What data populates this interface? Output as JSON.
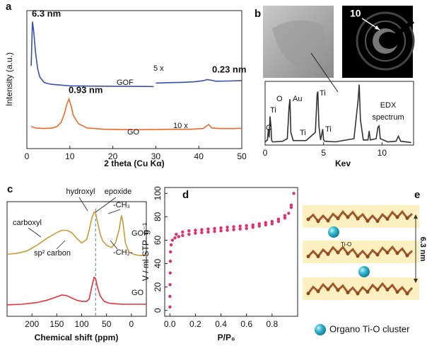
{
  "chart_data": [
    {
      "type": "line",
      "label": "a",
      "xlabel": "2 theta (Cu Kα)",
      "ylabel": "Intensity (a.u.)",
      "xlim": [
        0,
        50
      ],
      "ylim": [
        0,
        100
      ],
      "xticks": [
        0,
        10,
        20,
        30,
        40,
        50
      ],
      "series": [
        {
          "color": "#3a4fb0",
          "x": [
            1,
            1.3,
            1.6,
            2,
            2.5,
            3,
            4,
            5,
            6,
            8,
            10,
            15,
            20,
            25,
            29.5
          ],
          "values": [
            60,
            92,
            85,
            70,
            58,
            52,
            48,
            47,
            46.5,
            46,
            45.5,
            45.3,
            45.2,
            45.1,
            45
          ]
        },
        {
          "color": "#3a4fb0",
          "x": [
            30,
            33,
            36,
            39,
            41,
            42,
            43,
            44,
            47,
            50
          ],
          "values": [
            47.5,
            47.8,
            48,
            48.4,
            49.2,
            50,
            49.5,
            48.8,
            49,
            49.3
          ]
        },
        {
          "color": "#f06a2a",
          "x": [
            1,
            2,
            4,
            6,
            7,
            8,
            8.8,
            9.3,
            9.8,
            10.3,
            10.8,
            12,
            14,
            18,
            22,
            26,
            30,
            34,
            38,
            41,
            42.3,
            43,
            45,
            48,
            50
          ],
          "values": [
            16,
            15,
            14.5,
            15,
            16,
            19,
            26,
            32,
            36,
            31,
            24,
            18,
            15,
            14,
            13.8,
            13.7,
            13.8,
            14,
            14,
            14.5,
            17.5,
            15,
            14.5,
            14.5,
            14.7
          ]
        }
      ],
      "annotations": [
        "6.3 nm",
        "0.23 nm",
        "0.93 nm",
        "5 x",
        "10 x",
        "GOF",
        "GO"
      ]
    },
    {
      "type": "line",
      "label": "b",
      "xlabel": "Kev",
      "xlim": [
        0,
        12.7
      ],
      "ylim": [
        0,
        100
      ],
      "xticks": [
        0,
        5,
        10
      ],
      "image_label": "10",
      "series": [
        {
          "color": "#333333",
          "x": [
            0,
            0.2,
            0.28,
            0.35,
            0.42,
            0.5,
            0.55,
            0.62,
            0.8,
            1.5,
            1.9,
            2.05,
            2.12,
            2.2,
            2.4,
            3.5,
            4.3,
            4.45,
            4.51,
            4.6,
            4.75,
            4.93,
            5.0,
            5.1,
            6,
            7.6,
            7.95,
            8.05,
            8.15,
            8.4,
            8.8,
            8.9,
            9.0,
            9.5,
            9.65,
            9.75,
            9.85,
            10.5,
            11.2,
            11.4,
            11.6,
            12.5
          ],
          "values": [
            5,
            8,
            25,
            12,
            45,
            30,
            8,
            5,
            5,
            6,
            10,
            60,
            72,
            20,
            7,
            7,
            20,
            80,
            84,
            30,
            8,
            25,
            8,
            6,
            5,
            10,
            70,
            95,
            40,
            8,
            8,
            22,
            8,
            10,
            28,
            30,
            10,
            5,
            6,
            14,
            6,
            4
          ]
        }
      ],
      "annotations": [
        "C",
        "O",
        "Ti",
        "Au",
        "Ti",
        "Ti",
        "Ti",
        "EDX",
        "spectrum"
      ]
    },
    {
      "type": "line",
      "label": "c",
      "xlabel": "Chemical shift (ppm)",
      "xlim": [
        250,
        -30
      ],
      "ylim": [
        0,
        100
      ],
      "xticks": [
        200,
        150,
        100,
        50,
        0
      ],
      "reference_line": 72,
      "series": [
        {
          "color": "#c89a3a",
          "x": [
            250,
            230,
            210,
            190,
            170,
            150,
            140,
            130,
            120,
            110,
            100,
            90,
            85,
            80,
            75,
            72,
            68,
            63,
            58,
            50,
            40,
            32,
            25,
            20,
            17,
            12,
            5,
            -5,
            -15,
            -30
          ],
          "values": [
            54,
            55,
            57,
            62,
            68,
            73,
            75,
            75,
            73,
            68,
            64,
            67,
            75,
            85,
            91,
            90,
            82,
            72,
            66,
            62,
            60,
            64,
            75,
            88,
            82,
            64,
            56,
            54,
            53,
            53
          ]
        },
        {
          "color": "#e8303a",
          "x": [
            250,
            220,
            190,
            170,
            150,
            140,
            130,
            120,
            110,
            100,
            90,
            85,
            80,
            75,
            72,
            68,
            63,
            55,
            45,
            35,
            20,
            0,
            -30
          ],
          "values": [
            10,
            10.5,
            12,
            14,
            17,
            18.5,
            18,
            16,
            14,
            13,
            13,
            15,
            25,
            34,
            33,
            25,
            18,
            13,
            11.5,
            11,
            10.5,
            10.5,
            10.5
          ]
        }
      ],
      "annotations": [
        "carboxyl",
        "hydroxyl",
        "epoxide",
        "-CH₃",
        "sp² carbon",
        "-CH₂-",
        "GOF",
        "GO"
      ]
    },
    {
      "type": "scatter",
      "label": "d",
      "xlabel": "P/P₀",
      "ylabel": "V / ml-STP· g⁻¹",
      "xlim": [
        -0.04,
        1.0
      ],
      "ylim": [
        -5,
        105
      ],
      "xticks": [
        {
          "value": 0,
          "label": "0.0"
        },
        0.2,
        0.4,
        0.6,
        0.8
      ],
      "yticks": [
        0,
        20,
        40,
        60,
        80,
        100
      ],
      "series": [
        {
          "color": "#e0306a",
          "x": [
            0.001,
            0.001,
            0.002,
            0.003,
            0.004,
            0.005,
            0.01,
            0.02,
            0.04,
            0.07,
            0.1,
            0.15,
            0.2,
            0.25,
            0.3,
            0.35,
            0.4,
            0.45,
            0.5,
            0.55,
            0.6,
            0.65,
            0.7,
            0.75,
            0.8,
            0.85,
            0.9,
            0.93,
            0.95,
            0.97,
            0.95,
            0.9,
            0.85,
            0.8,
            0.75,
            0.7,
            0.65,
            0.6,
            0.55,
            0.5,
            0.45,
            0.4,
            0.35,
            0.3,
            0.25,
            0.2,
            0.15,
            0.1,
            0.05
          ],
          "values": [
            3,
            12,
            22,
            32,
            42,
            50,
            56,
            60,
            62,
            63,
            64,
            65,
            66,
            66.5,
            67,
            67.5,
            68,
            68.5,
            69,
            69.5,
            70,
            71,
            72,
            73,
            74,
            76,
            79,
            83,
            90,
            100,
            88,
            81,
            78,
            76,
            75,
            74,
            73,
            72.5,
            72,
            71.5,
            71,
            70.5,
            70,
            69.5,
            69,
            68.5,
            68,
            67,
            65
          ]
        }
      ]
    }
  ],
  "diagram": {
    "label": "e",
    "spacing": "6.3 nm",
    "cluster_label": "Ti-O",
    "legend": "Organo Ti-O cluster"
  }
}
